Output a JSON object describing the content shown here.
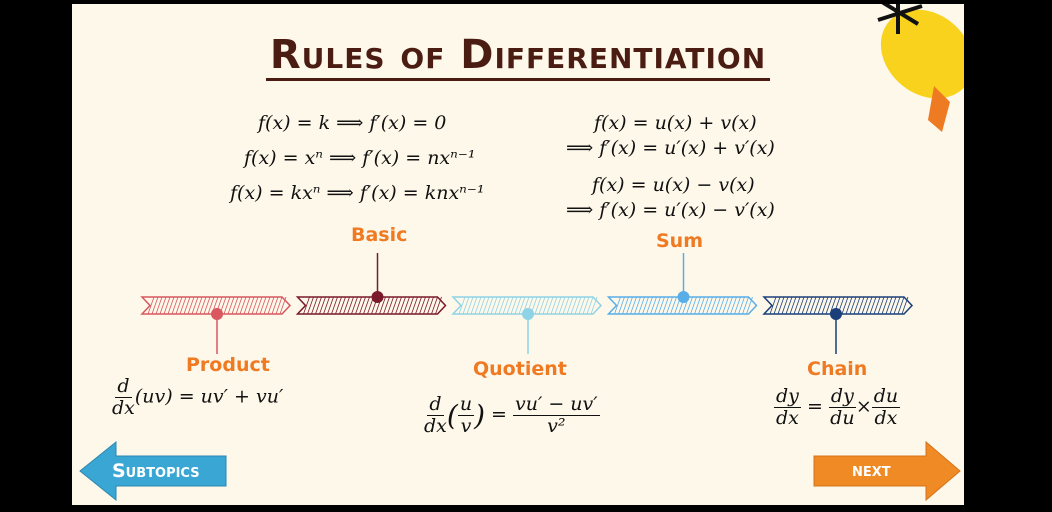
{
  "title": "Rules of Differentiation",
  "formulas": {
    "basic": [
      "f(x) = k ⟹ f′(x) = 0",
      "f(x) = xⁿ ⟹ f′(x) = nxⁿ⁻¹",
      "f(x) = kxⁿ ⟹ f′(x) = knxⁿ⁻¹"
    ],
    "sum": [
      "f(x) = u(x) + v(x)",
      "⟹ f′(x) = u′(x) + v′(x)",
      "f(x) = u(x) − v(x)",
      "⟹ f′(x) = u′(x) − v′(x)"
    ],
    "product": {
      "num": "d",
      "den": "dx",
      "rest": "(uv) = uv′ + vu′"
    },
    "quotient": {
      "num": "d",
      "den": "dx",
      "inner_num": "u",
      "inner_den": "v",
      "rhs_num": "vu′ − uv′",
      "rhs_den": "v²"
    },
    "chain": {
      "a_num": "dy",
      "a_den": "dx",
      "b_num": "dy",
      "b_den": "du",
      "c_num": "du",
      "c_den": "dx"
    }
  },
  "timeline": {
    "labels": {
      "basic": "Basic",
      "sum": "Sum",
      "product": "Product",
      "quotient": "Quotient",
      "chain": "Chain"
    },
    "colors": [
      "#d9575f",
      "#7a1a2a",
      "#8fd3e6",
      "#5aaee8",
      "#1b3f78"
    ]
  },
  "nav": {
    "back_label": "Subtopics",
    "next_label": "next",
    "back_color": "#3aa6d4",
    "next_color": "#f08a24"
  }
}
